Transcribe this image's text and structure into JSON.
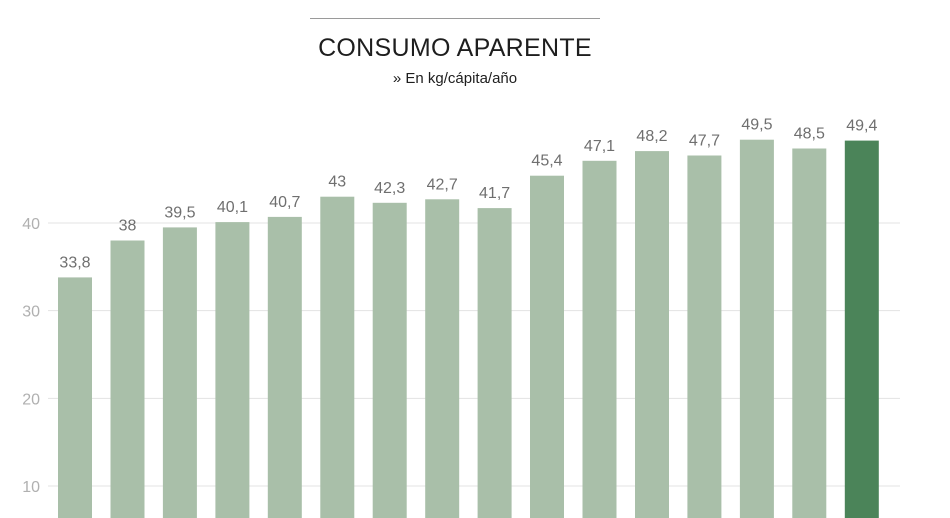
{
  "title": "CONSUMO APARENTE",
  "subtitle": "» En kg/cápita/año",
  "colors": {
    "bar": "#a9bfa9",
    "highlight_bar": "#4b8459",
    "grid": "#e3e3e3",
    "value_label": "#6f6f6f",
    "tick_label": "#b0b0b0"
  },
  "chart_data": {
    "type": "bar",
    "title": "CONSUMO APARENTE",
    "subtitle": "» En kg/cápita/año",
    "xlabel": "",
    "ylabel": "",
    "ylim": [
      5,
      50
    ],
    "yticks": [
      10,
      20,
      30,
      40
    ],
    "grid": true,
    "values": [
      33.8,
      38,
      39.5,
      40.1,
      40.7,
      43,
      42.3,
      42.7,
      41.7,
      45.4,
      47.1,
      48.2,
      47.7,
      49.5,
      48.5,
      49.4
    ],
    "value_labels": [
      "33,8",
      "38",
      "39,5",
      "40,1",
      "40,7",
      "43",
      "42,3",
      "42,7",
      "41,7",
      "45,4",
      "47,1",
      "48,2",
      "47,7",
      "49,5",
      "48,5",
      "49,4"
    ],
    "highlight_index": 15
  }
}
